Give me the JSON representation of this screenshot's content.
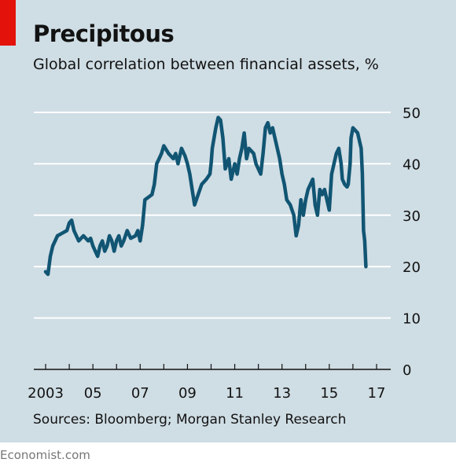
{
  "header": {
    "title": "Precipitous",
    "subtitle": "Global correlation between financial assets, %"
  },
  "footer": {
    "source": "Sources: Bloomberg; Morgan Stanley Research",
    "brand": "Economist.com"
  },
  "colors": {
    "background": "#cfdde4",
    "line": "#115573",
    "accent": "#e3120b",
    "gridline": "#ffffff"
  },
  "chart_data": {
    "type": "line",
    "title": "Precipitous",
    "subtitle": "Global correlation between financial assets, %",
    "xlabel": "",
    "ylabel": "",
    "xlim": [
      2002.5,
      2017.6
    ],
    "ylim": [
      0,
      50
    ],
    "y_ticks": [
      0,
      10,
      20,
      30,
      40,
      50
    ],
    "x_ticks": [
      {
        "value": 2003,
        "label": "2003"
      },
      {
        "value": 2005,
        "label": "05"
      },
      {
        "value": 2007,
        "label": "07"
      },
      {
        "value": 2009,
        "label": "09"
      },
      {
        "value": 2011,
        "label": "11"
      },
      {
        "value": 2013,
        "label": "13"
      },
      {
        "value": 2015,
        "label": "15"
      },
      {
        "value": 2017,
        "label": "17"
      }
    ],
    "grid": true,
    "y_axis_side": "right",
    "series": [
      {
        "values": [
          [
            2003.0,
            19
          ],
          [
            2003.1,
            18.5
          ],
          [
            2003.2,
            22
          ],
          [
            2003.3,
            24
          ],
          [
            2003.5,
            26
          ],
          [
            2003.7,
            26.5
          ],
          [
            2003.9,
            27
          ],
          [
            2004.0,
            28.5
          ],
          [
            2004.1,
            29
          ],
          [
            2004.2,
            27
          ],
          [
            2004.4,
            25
          ],
          [
            2004.6,
            26
          ],
          [
            2004.8,
            25
          ],
          [
            2004.9,
            25.5
          ],
          [
            2005.0,
            24
          ],
          [
            2005.1,
            23
          ],
          [
            2005.2,
            22
          ],
          [
            2005.3,
            24
          ],
          [
            2005.4,
            25
          ],
          [
            2005.5,
            23
          ],
          [
            2005.6,
            24
          ],
          [
            2005.7,
            26
          ],
          [
            2005.8,
            25
          ],
          [
            2005.9,
            23
          ],
          [
            2006.0,
            25
          ],
          [
            2006.1,
            26
          ],
          [
            2006.2,
            24
          ],
          [
            2006.3,
            25
          ],
          [
            2006.45,
            27
          ],
          [
            2006.6,
            25.5
          ],
          [
            2006.8,
            26
          ],
          [
            2006.9,
            27
          ],
          [
            2007.0,
            25
          ],
          [
            2007.1,
            28
          ],
          [
            2007.2,
            33
          ],
          [
            2007.35,
            33.5
          ],
          [
            2007.5,
            34
          ],
          [
            2007.6,
            36
          ],
          [
            2007.7,
            40
          ],
          [
            2007.8,
            41
          ],
          [
            2007.9,
            42
          ],
          [
            2008.0,
            43.5
          ],
          [
            2008.2,
            42
          ],
          [
            2008.4,
            41
          ],
          [
            2008.5,
            42
          ],
          [
            2008.6,
            40
          ],
          [
            2008.75,
            43
          ],
          [
            2008.9,
            41.5
          ],
          [
            2009.0,
            40
          ],
          [
            2009.1,
            38
          ],
          [
            2009.2,
            35
          ],
          [
            2009.3,
            32
          ],
          [
            2009.45,
            34
          ],
          [
            2009.6,
            36
          ],
          [
            2009.8,
            37
          ],
          [
            2009.95,
            38
          ],
          [
            2010.0,
            40
          ],
          [
            2010.05,
            43
          ],
          [
            2010.2,
            47
          ],
          [
            2010.3,
            49
          ],
          [
            2010.4,
            48.5
          ],
          [
            2010.5,
            45
          ],
          [
            2010.6,
            39
          ],
          [
            2010.75,
            41
          ],
          [
            2010.85,
            37
          ],
          [
            2011.0,
            40
          ],
          [
            2011.1,
            38
          ],
          [
            2011.2,
            41
          ],
          [
            2011.3,
            43
          ],
          [
            2011.4,
            46
          ],
          [
            2011.5,
            41
          ],
          [
            2011.6,
            43
          ],
          [
            2011.8,
            42
          ],
          [
            2011.9,
            40
          ],
          [
            2012.0,
            39
          ],
          [
            2012.1,
            38
          ],
          [
            2012.2,
            42
          ],
          [
            2012.3,
            47
          ],
          [
            2012.4,
            48
          ],
          [
            2012.5,
            46
          ],
          [
            2012.6,
            47
          ],
          [
            2012.75,
            44
          ],
          [
            2012.9,
            41
          ],
          [
            2013.0,
            38
          ],
          [
            2013.1,
            36
          ],
          [
            2013.2,
            33
          ],
          [
            2013.35,
            32
          ],
          [
            2013.5,
            30
          ],
          [
            2013.6,
            26
          ],
          [
            2013.7,
            28
          ],
          [
            2013.8,
            33
          ],
          [
            2013.9,
            30
          ],
          [
            2014.0,
            33
          ],
          [
            2014.1,
            35
          ],
          [
            2014.2,
            36
          ],
          [
            2014.3,
            37
          ],
          [
            2014.4,
            32
          ],
          [
            2014.5,
            30
          ],
          [
            2014.6,
            35
          ],
          [
            2014.7,
            34
          ],
          [
            2014.8,
            35
          ],
          [
            2014.9,
            33
          ],
          [
            2015.0,
            31
          ],
          [
            2015.1,
            38
          ],
          [
            2015.2,
            40
          ],
          [
            2015.3,
            42
          ],
          [
            2015.4,
            43
          ],
          [
            2015.5,
            40
          ],
          [
            2015.55,
            37
          ],
          [
            2015.65,
            36
          ],
          [
            2015.75,
            35.5
          ],
          [
            2015.8,
            36
          ],
          [
            2015.88,
            40
          ],
          [
            2015.92,
            45
          ],
          [
            2016.0,
            47
          ],
          [
            2016.1,
            46.5
          ],
          [
            2016.2,
            46
          ],
          [
            2016.3,
            44
          ],
          [
            2016.35,
            43
          ],
          [
            2016.4,
            38
          ],
          [
            2016.45,
            27
          ],
          [
            2016.5,
            25
          ],
          [
            2016.55,
            20
          ]
        ]
      }
    ]
  }
}
